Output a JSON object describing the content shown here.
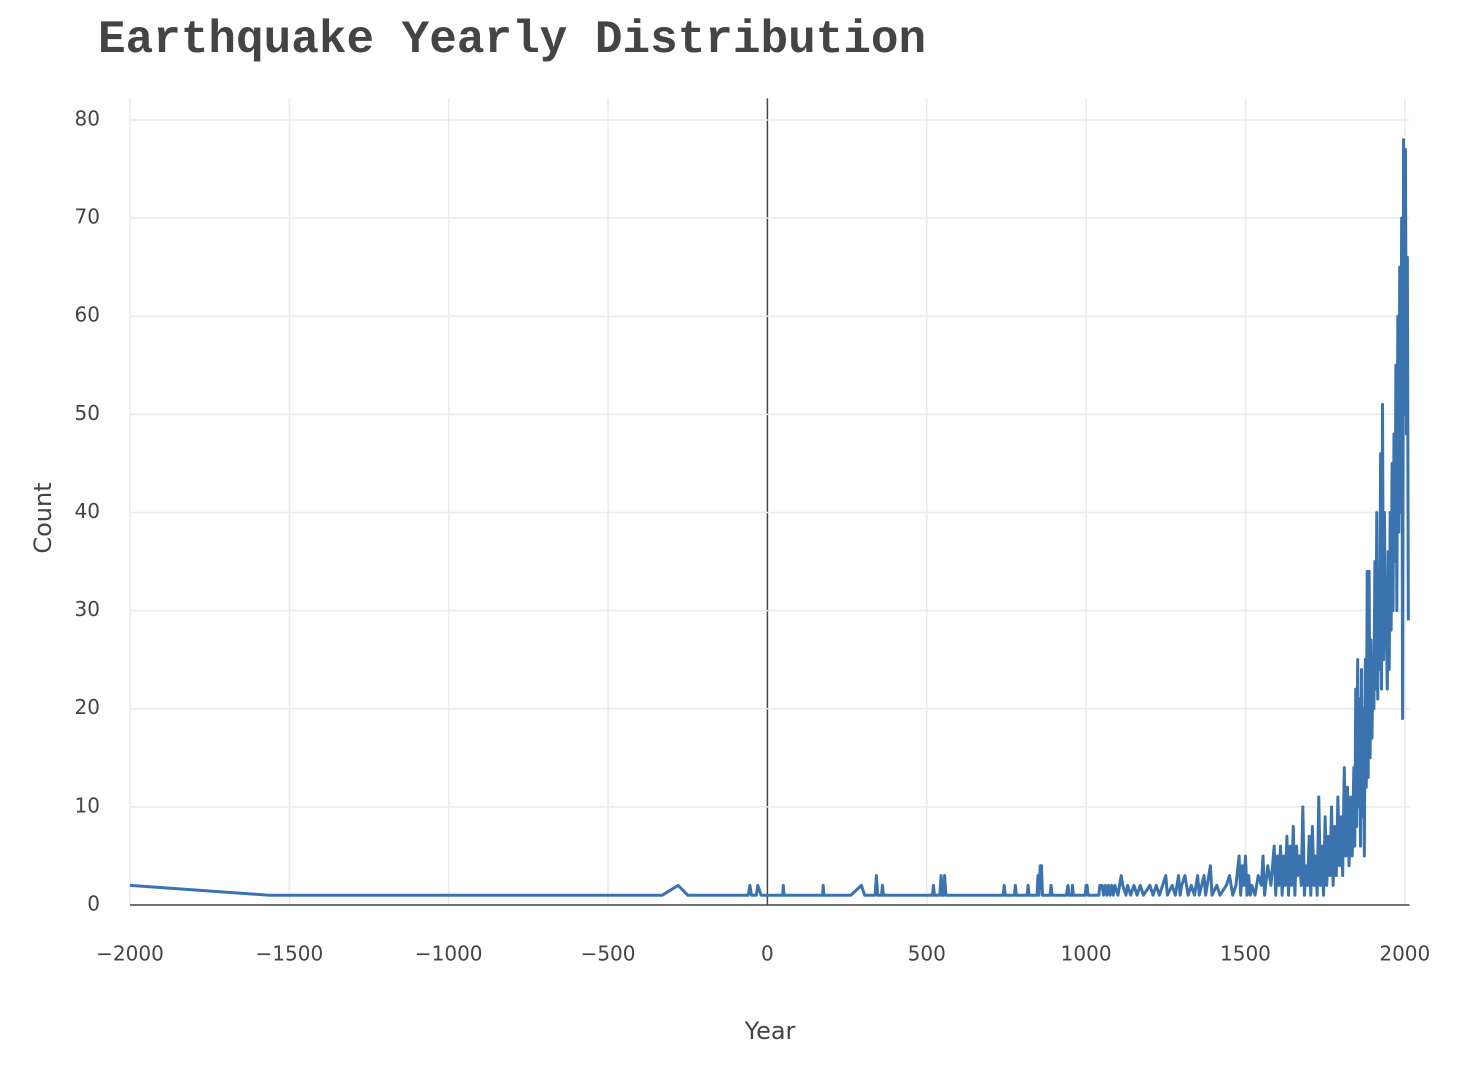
{
  "chart_data": {
    "type": "line",
    "title": "Earthquake Yearly Distribution",
    "x_label": "Year",
    "y_label": "Count",
    "xlim": [
      -2000,
      2015
    ],
    "ylim": [
      0,
      82.2
    ],
    "xticks": [
      {
        "value": -2000,
        "label": "−2000"
      },
      {
        "value": -1500,
        "label": "−1500"
      },
      {
        "value": -1000,
        "label": "−1000"
      },
      {
        "value": -500,
        "label": "−500"
      },
      0,
      500,
      1000,
      1500,
      2000
    ],
    "yticks": [
      0,
      10,
      20,
      30,
      40,
      50,
      60,
      70,
      80
    ],
    "grid": true,
    "series": [
      {
        "name": "Count",
        "color": "#3b73af",
        "x": [
          -2000,
          -1566,
          -330,
          -280,
          -250,
          -60,
          -55,
          -50,
          -35,
          -30,
          -20,
          48,
          50,
          52,
          173,
          175,
          177,
          262,
          295,
          305,
          338,
          342,
          346,
          358,
          361,
          364,
          518,
          521,
          524,
          541,
          545,
          548,
          553,
          556,
          560,
          740,
          743,
          746,
          775,
          778,
          781,
          815,
          818,
          821,
          846,
          849,
          852,
          856,
          860,
          863,
          887,
          890,
          893,
          938,
          943,
          946,
          955,
          957,
          960,
          997,
          1000,
          1003,
          1006,
          1040,
          1043,
          1050,
          1055,
          1060,
          1065,
          1070,
          1075,
          1080,
          1085,
          1090,
          1100,
          1105,
          1110,
          1115,
          1125,
          1130,
          1140,
          1150,
          1160,
          1170,
          1180,
          1200,
          1210,
          1220,
          1230,
          1240,
          1250,
          1255,
          1270,
          1280,
          1290,
          1295,
          1300,
          1310,
          1320,
          1330,
          1340,
          1350,
          1355,
          1370,
          1375,
          1390,
          1395,
          1410,
          1420,
          1440,
          1450,
          1460,
          1470,
          1480,
          1485,
          1490,
          1495,
          1500,
          1505,
          1510,
          1515,
          1520,
          1530,
          1540,
          1550,
          1555,
          1560,
          1570,
          1580,
          1590,
          1595,
          1600,
          1605,
          1610,
          1615,
          1620,
          1625,
          1630,
          1635,
          1640,
          1645,
          1650,
          1655,
          1660,
          1665,
          1670,
          1675,
          1680,
          1685,
          1690,
          1695,
          1700,
          1705,
          1710,
          1715,
          1720,
          1725,
          1730,
          1735,
          1740,
          1745,
          1750,
          1755,
          1760,
          1765,
          1770,
          1775,
          1780,
          1785,
          1790,
          1795,
          1800,
          1805,
          1810,
          1815,
          1820,
          1825,
          1830,
          1835,
          1840,
          1843,
          1846,
          1849,
          1852,
          1855,
          1858,
          1861,
          1864,
          1867,
          1870,
          1873,
          1876,
          1879,
          1882,
          1885,
          1888,
          1891,
          1894,
          1897,
          1900,
          1903,
          1906,
          1909,
          1912,
          1915,
          1918,
          1921,
          1924,
          1927,
          1930,
          1933,
          1936,
          1939,
          1942,
          1945,
          1948,
          1951,
          1954,
          1957,
          1960,
          1963,
          1966,
          1969,
          1972,
          1975,
          1978,
          1981,
          1984,
          1987,
          1990,
          1993,
          1996,
          1999,
          2002,
          2005,
          2008,
          2011
        ],
        "values": [
          2,
          1,
          1,
          2,
          1,
          1,
          2,
          1,
          1,
          2,
          1,
          1,
          2,
          1,
          1,
          2,
          1,
          1,
          2,
          1,
          1,
          3,
          1,
          1,
          2,
          1,
          1,
          2,
          1,
          1,
          3,
          1,
          1,
          3,
          1,
          1,
          2,
          1,
          1,
          2,
          1,
          1,
          2,
          1,
          1,
          3,
          1,
          4,
          4,
          1,
          1,
          2,
          1,
          1,
          2,
          1,
          1,
          2,
          1,
          1,
          2,
          2,
          1,
          1,
          2,
          2,
          1,
          2,
          1,
          2,
          1,
          2,
          1,
          2,
          1,
          2,
          3,
          2,
          1,
          2,
          1,
          2,
          1,
          2,
          1,
          2,
          1,
          2,
          1,
          2,
          3,
          1,
          2,
          1,
          3,
          1,
          2,
          3,
          1,
          2,
          1,
          3,
          1,
          3,
          1,
          4,
          1,
          2,
          1,
          2,
          3,
          1,
          2,
          5,
          1,
          4,
          2,
          5,
          1,
          3,
          1,
          2,
          1,
          3,
          2,
          5,
          1,
          4,
          2,
          6,
          1,
          5,
          2,
          6,
          1,
          5,
          2,
          7,
          1,
          6,
          2,
          8,
          1,
          6,
          3,
          5,
          2,
          10,
          1,
          4,
          2,
          7,
          1,
          8,
          2,
          5,
          1,
          11,
          2,
          6,
          1,
          9,
          2,
          7,
          3,
          10,
          2,
          8,
          3,
          11,
          4,
          9,
          3,
          14,
          5,
          12,
          4,
          11,
          5,
          14,
          6,
          22,
          8,
          25,
          10,
          21,
          6,
          24,
          9,
          20,
          5,
          25,
          12,
          34,
          13,
          34,
          15,
          27,
          17,
          25,
          20,
          35,
          22,
          40,
          21,
          33,
          24,
          46,
          22,
          51,
          25,
          40,
          30,
          28,
          22,
          36,
          24,
          40,
          28,
          45,
          30,
          48,
          35,
          55,
          30,
          60,
          38,
          65,
          40,
          70,
          19,
          78,
          50,
          77,
          48,
          66,
          29
        ]
      }
    ]
  }
}
